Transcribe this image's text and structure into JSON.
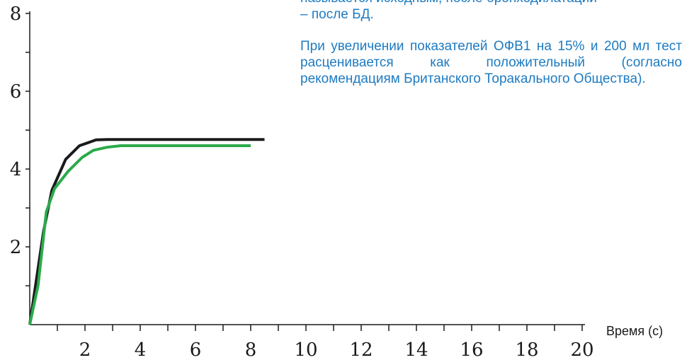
{
  "chart_data": {
    "type": "line",
    "xlabel": "Время (с)",
    "ylabel": "",
    "xlim": [
      0,
      20
    ],
    "ylim": [
      0,
      8
    ],
    "x_ticks": [
      2,
      4,
      6,
      8,
      10,
      12,
      14,
      16,
      18,
      20
    ],
    "y_ticks": [
      2,
      4,
      6,
      8
    ],
    "grid": false,
    "series": [
      {
        "color": "#1a1a1a",
        "x": [
          0,
          0.5,
          0.8,
          1.3,
          1.8,
          2.4,
          2.8,
          8.5
        ],
        "y": [
          0,
          2.4,
          3.45,
          4.25,
          4.6,
          4.75,
          4.76,
          4.76
        ]
      },
      {
        "color": "#2aaa4a",
        "x": [
          0,
          0.3,
          0.6,
          0.9,
          1.4,
          1.9,
          2.3,
          2.8,
          3.3,
          8.0
        ],
        "y": [
          0,
          1.0,
          2.9,
          3.5,
          3.95,
          4.3,
          4.48,
          4.56,
          4.6,
          4.6
        ]
      }
    ]
  },
  "side_text": {
    "line1": "называется исходным, после бронходилатации",
    "line2": "– после БД.",
    "paragraph2": "При увеличении показателей ОФВ1 на 15% и 200 мл тест расценивается как положительный (согласно рекомендациям Британского Торакального Общества)."
  }
}
